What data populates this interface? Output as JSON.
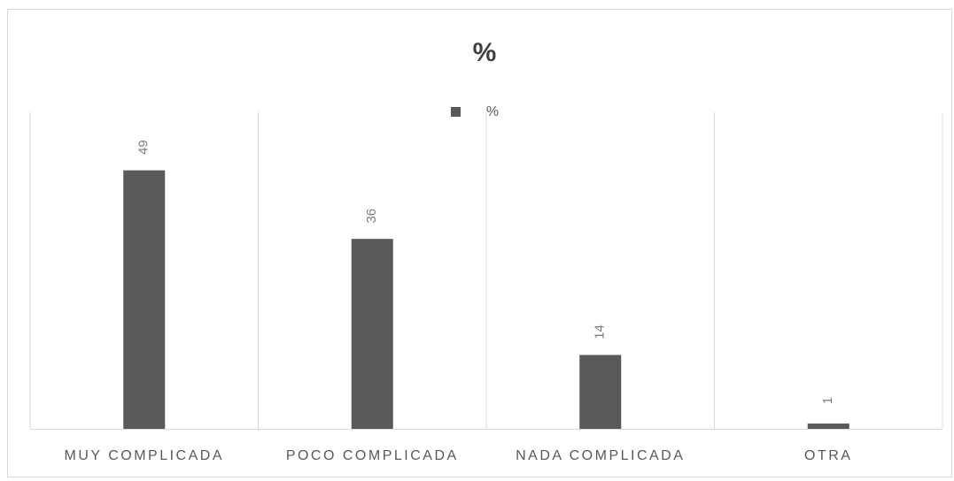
{
  "chart_data": {
    "type": "bar",
    "title": "%",
    "categories": [
      "MUY COMPLICADA",
      "POCO COMPLICADA",
      "NADA COMPLICADA",
      "OTRA"
    ],
    "series": [
      {
        "name": "%",
        "color": "#595959",
        "values": [
          49,
          36,
          14,
          1
        ]
      }
    ],
    "ylim": [
      0,
      60
    ],
    "grid": true,
    "legend": "top"
  }
}
